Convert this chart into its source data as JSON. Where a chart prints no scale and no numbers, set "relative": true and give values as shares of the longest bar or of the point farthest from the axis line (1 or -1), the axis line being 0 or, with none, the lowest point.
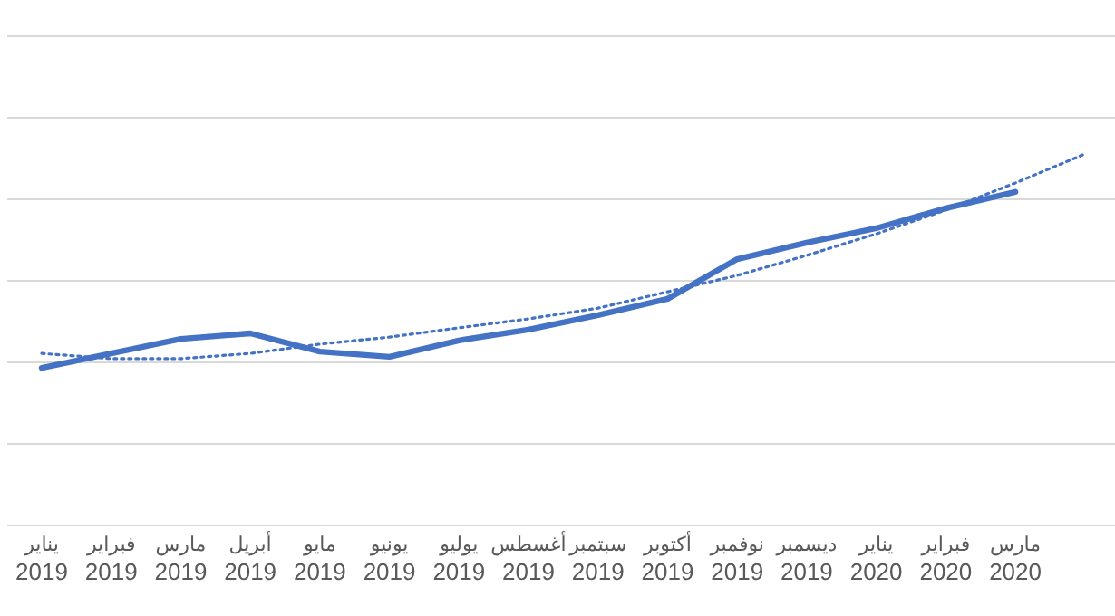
{
  "chart_data": {
    "type": "line",
    "relative": true,
    "grid": "y",
    "categories": [
      "يناير 2019",
      "فبراير 2019",
      "مارس 2019",
      "أبريل 2019",
      "مايو 2019",
      "يونيو 2019",
      "يوليو 2019",
      "أغسطس 2019",
      "سبتمبر 2019",
      "أكتوبر 2019",
      "نوفمبر 2019",
      "ديسمبر 2019",
      "يناير 2020",
      "فبراير 2020",
      "مارس 2020",
      null
    ],
    "series": [
      {
        "color": "#4472c4",
        "line_style": "solid",
        "values": [
          0.424,
          0.463,
          0.502,
          0.517,
          0.468,
          0.454,
          0.498,
          0.527,
          0.566,
          0.61,
          0.717,
          0.761,
          0.8,
          0.854,
          0.898,
          null
        ]
      },
      {
        "type": "line",
        "color": "#4472c4",
        "line_style": "dotted",
        "values": [
          0.463,
          0.449,
          0.449,
          0.463,
          0.488,
          0.507,
          0.532,
          0.556,
          0.585,
          0.629,
          0.673,
          0.727,
          0.785,
          0.849,
          0.922,
          1
        ]
      }
    ]
  }
}
